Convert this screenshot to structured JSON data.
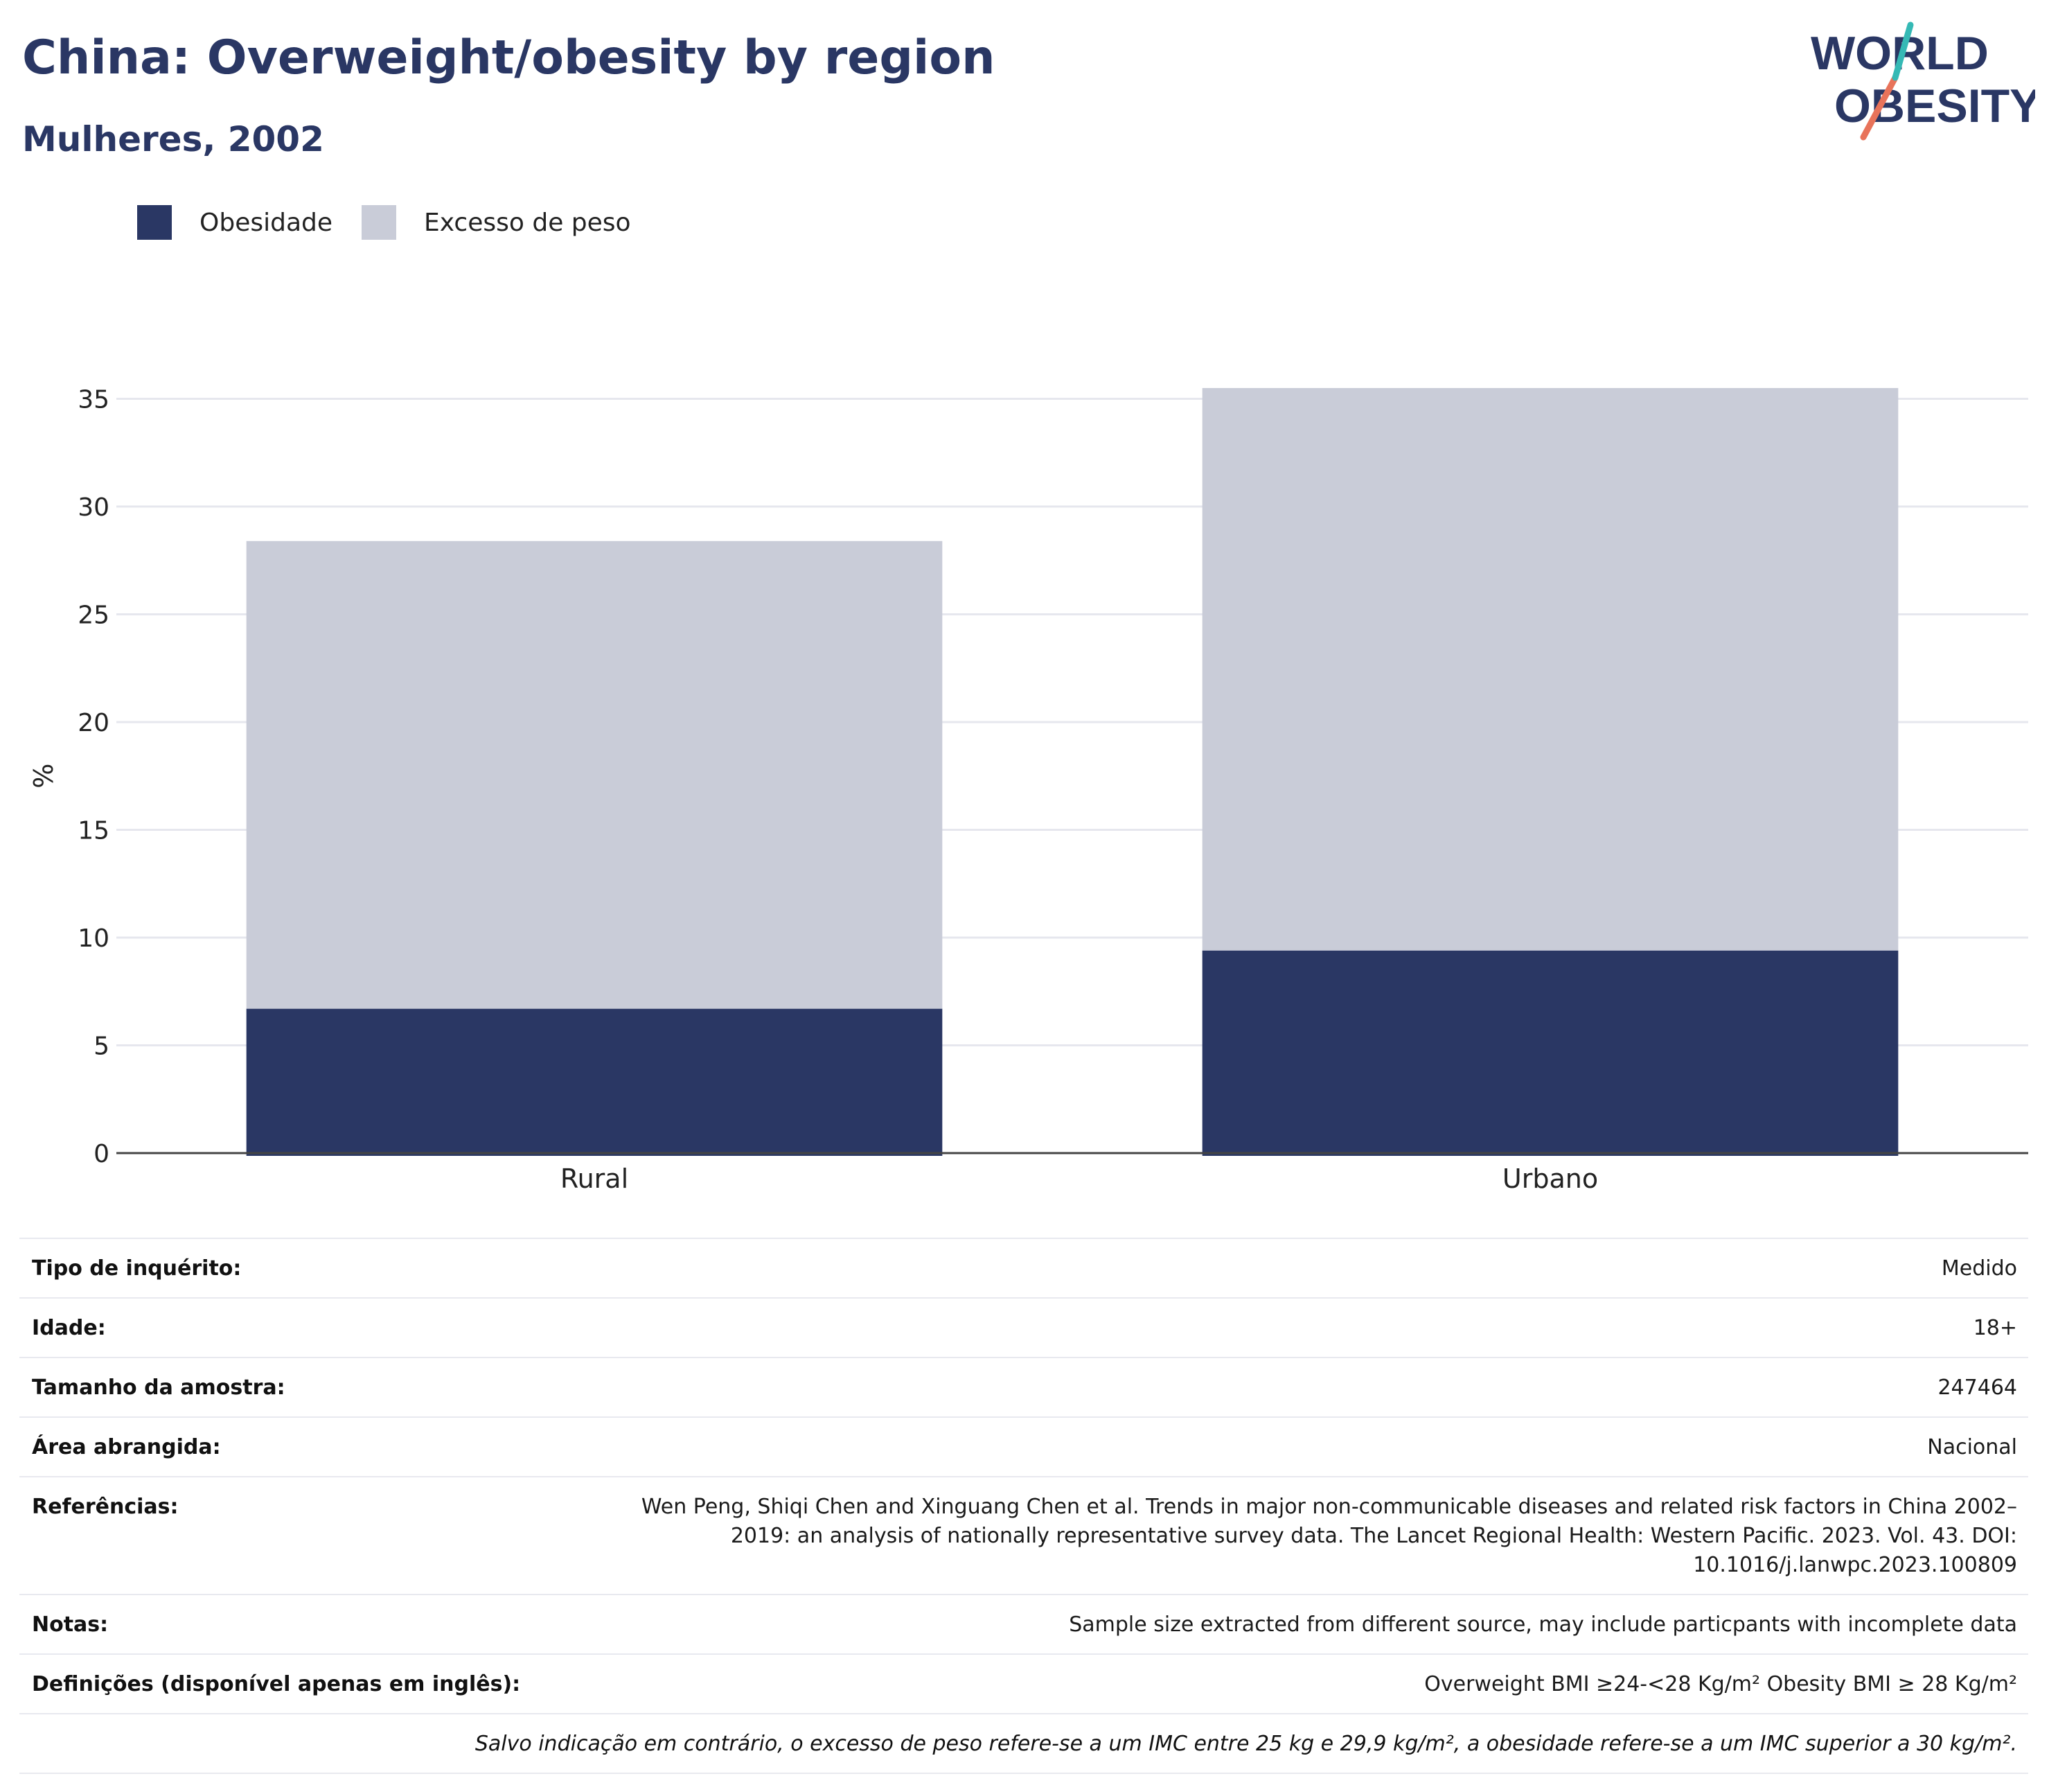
{
  "header": {
    "title": "China: Overweight/obesity by region",
    "subtitle": "Mulheres, 2002"
  },
  "logo": {
    "line1": "WORLD",
    "line2": "OBESITY"
  },
  "colors": {
    "obesity": "#2a3764",
    "overweight": "#c9ccd8",
    "text": "#2a3764",
    "logo_teal": "#35b9b5",
    "logo_coral": "#e8735a"
  },
  "chart_data": {
    "type": "bar",
    "stacked": true,
    "categories": [
      "Rural",
      "Urbano"
    ],
    "series": [
      {
        "name": "Obesidade",
        "values": [
          6.7,
          9.4
        ],
        "color": "#2a3764"
      },
      {
        "name": "Excesso de peso",
        "values": [
          21.7,
          26.1
        ],
        "color": "#c9ccd8"
      }
    ],
    "ylabel": "%",
    "ylim": [
      0,
      35.5
    ],
    "yticks": [
      0,
      5,
      10,
      15,
      20,
      25,
      30,
      35
    ],
    "grid": true,
    "legend": "top-left"
  },
  "info": [
    {
      "label": "Tipo de inquérito:",
      "value": "Medido"
    },
    {
      "label": "Idade:",
      "value": "18+"
    },
    {
      "label": "Tamanho da amostra:",
      "value": "247464"
    },
    {
      "label": "Área abrangida:",
      "value": "Nacional"
    },
    {
      "label": "Referências:",
      "value": "Wen Peng, Shiqi Chen and Xinguang Chen et al. Trends in major non-communicable diseases and related risk factors in China 2002–2019: an analysis of nationally representative survey data. The Lancet Regional Health: Western Pacific. 2023. Vol. 43. DOI: 10.1016/j.lanwpc.2023.100809"
    },
    {
      "label": "Notas:",
      "value": "Sample size extracted from different source, may include particpants with incomplete data"
    },
    {
      "label": "Definições (disponível apenas em inglês):",
      "value": "Overweight BMI ≥24-<28 Kg/m² Obesity BMI ≥ 28 Kg/m²"
    }
  ],
  "footnote": "Salvo indicação em contrário, o excesso de peso refere-se a um IMC entre 25 kg e 29,9 kg/m², a obesidade refere-se a um IMC superior a 30 kg/m²."
}
